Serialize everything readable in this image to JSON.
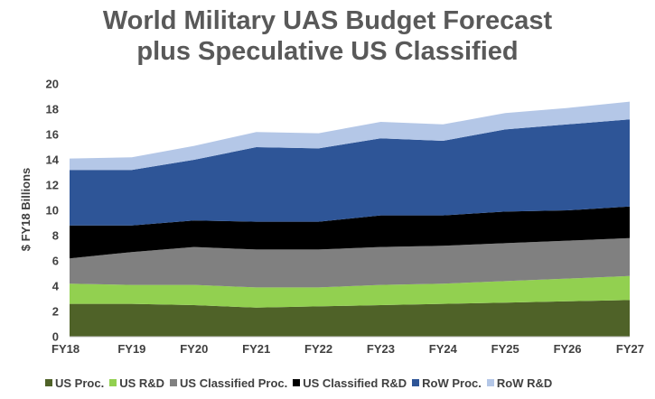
{
  "chart_data": {
    "type": "area",
    "stacked": true,
    "title_lines": [
      "World Military UAS Budget Forecast",
      "plus Speculative US Classified"
    ],
    "xlabel": "",
    "ylabel": "$ FY18 Billions",
    "ylim": [
      0,
      20
    ],
    "yticks": [
      0,
      2,
      4,
      6,
      8,
      10,
      12,
      14,
      16,
      18,
      20
    ],
    "grid": false,
    "legend_position": "bottom",
    "categories": [
      "FY18",
      "FY19",
      "FY20",
      "FY21",
      "FY22",
      "FY23",
      "FY24",
      "FY25",
      "FY26",
      "FY27"
    ],
    "series": [
      {
        "name": "US Proc.",
        "color": "#4f6228",
        "values": [
          2.6,
          2.6,
          2.5,
          2.3,
          2.4,
          2.5,
          2.6,
          2.7,
          2.8,
          2.9
        ]
      },
      {
        "name": "US R&D",
        "color": "#92d050",
        "values": [
          1.6,
          1.5,
          1.6,
          1.6,
          1.5,
          1.6,
          1.6,
          1.7,
          1.8,
          1.9
        ]
      },
      {
        "name": "US Classified Proc.",
        "color": "#808080",
        "values": [
          2.0,
          2.6,
          3.0,
          3.0,
          3.0,
          3.0,
          3.0,
          3.0,
          3.0,
          3.0
        ]
      },
      {
        "name": "US Classified R&D",
        "color": "#000000",
        "values": [
          2.6,
          2.1,
          2.1,
          2.2,
          2.2,
          2.5,
          2.4,
          2.5,
          2.4,
          2.5
        ]
      },
      {
        "name": "RoW Proc.",
        "color": "#2e5597",
        "values": [
          4.4,
          4.4,
          4.8,
          5.9,
          5.8,
          6.1,
          5.9,
          6.5,
          6.8,
          6.9
        ]
      },
      {
        "name": "RoW R&D",
        "color": "#b4c7e7",
        "values": [
          0.9,
          1.0,
          1.1,
          1.2,
          1.2,
          1.3,
          1.3,
          1.3,
          1.3,
          1.4
        ]
      }
    ]
  }
}
